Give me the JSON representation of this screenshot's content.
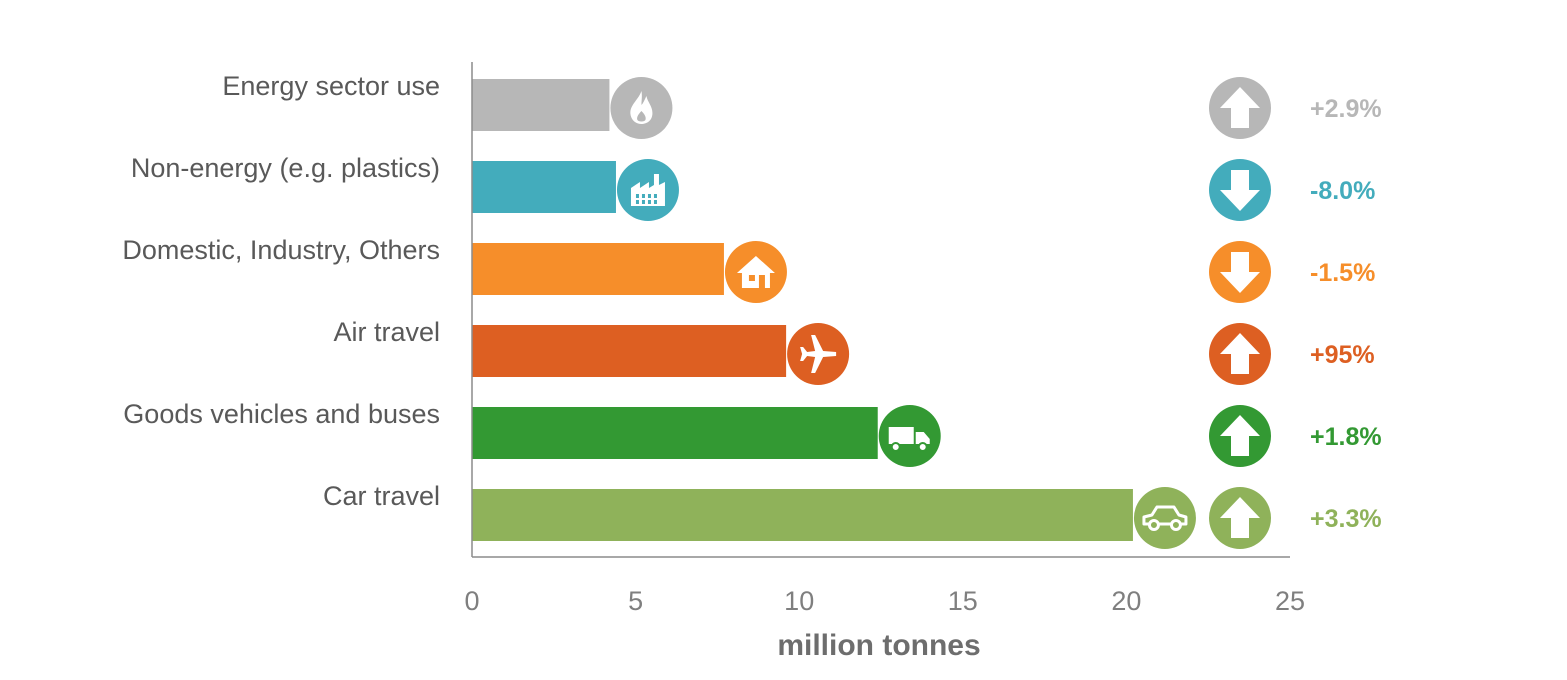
{
  "chart_data": {
    "type": "bar",
    "orientation": "horizontal",
    "categories": [
      "Energy sector use",
      "Non-energy (e.g. plastics)",
      "Domestic, Industry, Others",
      "Air travel",
      "Goods vehicles and buses",
      "Car travel"
    ],
    "values": [
      4.2,
      4.4,
      7.7,
      9.6,
      12.4,
      20.2
    ],
    "colors": [
      "#b7b7b7",
      "#43acbc",
      "#f68e2a",
      "#dd5f22",
      "#339933",
      "#8fb25a"
    ],
    "icons": [
      "flame-icon",
      "factory-icon",
      "house-icon",
      "airplane-icon",
      "truck-icon",
      "car-icon"
    ],
    "change_direction": [
      "up",
      "down",
      "down",
      "up",
      "up",
      "up"
    ],
    "change_labels": [
      "+2.9%",
      "-8.0%",
      "-1.5%",
      "+95%",
      "+1.8%",
      "+3.3%"
    ],
    "xlabel": "million tonnes",
    "xlim": [
      0,
      25
    ],
    "xticks": [
      0,
      5,
      10,
      15,
      20,
      25
    ],
    "grid": false
  }
}
